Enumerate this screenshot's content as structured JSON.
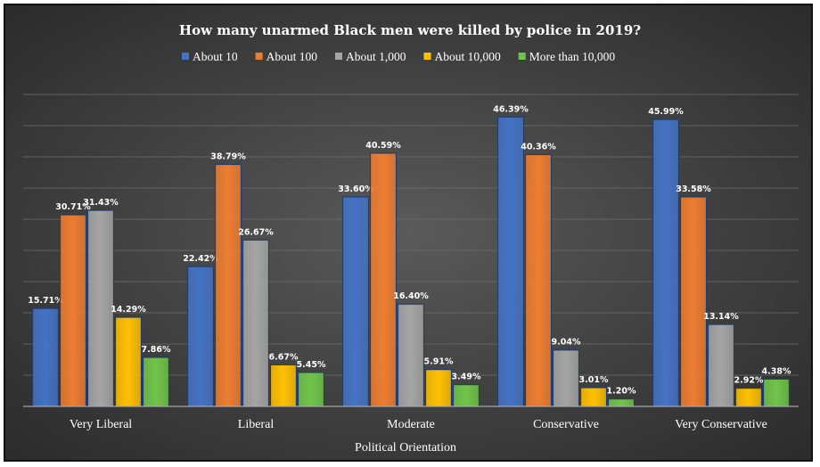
{
  "chart_data": {
    "type": "bar",
    "title": "How many unarmed Black men were killed by police in 2019?",
    "xlabel": "Political Orientation",
    "ylabel": "",
    "ylim": [
      0,
      50
    ],
    "grid": true,
    "legend": "top",
    "categories": [
      "Very Liberal",
      "Liberal",
      "Moderate",
      "Conservative",
      "Very Conservative"
    ],
    "series": [
      {
        "name": "About 10",
        "color": "#4472c4",
        "values": [
          15.71,
          22.42,
          33.6,
          46.39,
          45.99
        ],
        "labels": [
          "15.71%",
          "22.42%",
          "33.60%",
          "46.39%",
          "45.99%"
        ]
      },
      {
        "name": "About 100",
        "color": "#ed7d31",
        "values": [
          30.71,
          38.79,
          40.59,
          40.36,
          33.58
        ],
        "labels": [
          "30.71%",
          "38.79%",
          "40.59%",
          "40.36%",
          "33.58%"
        ]
      },
      {
        "name": "About 1,000",
        "color": "#a5a5a5",
        "values": [
          31.43,
          26.67,
          16.4,
          9.04,
          13.14
        ],
        "labels": [
          "31.43%",
          "26.67%",
          "16.40%",
          "9.04%",
          "13.14%"
        ]
      },
      {
        "name": "About 10,000",
        "color": "#ffc000",
        "values": [
          14.29,
          6.67,
          5.91,
          3.01,
          2.92
        ],
        "labels": [
          "14.29%",
          "6.67%",
          "5.91%",
          "3.01%",
          "2.92%"
        ]
      },
      {
        "name": "More than 10,000",
        "color": "#70c44a",
        "values": [
          7.86,
          5.45,
          3.49,
          1.2,
          4.38
        ],
        "labels": [
          "7.86%",
          "5.45%",
          "3.49%",
          "1.20%",
          "4.38%"
        ]
      }
    ]
  }
}
